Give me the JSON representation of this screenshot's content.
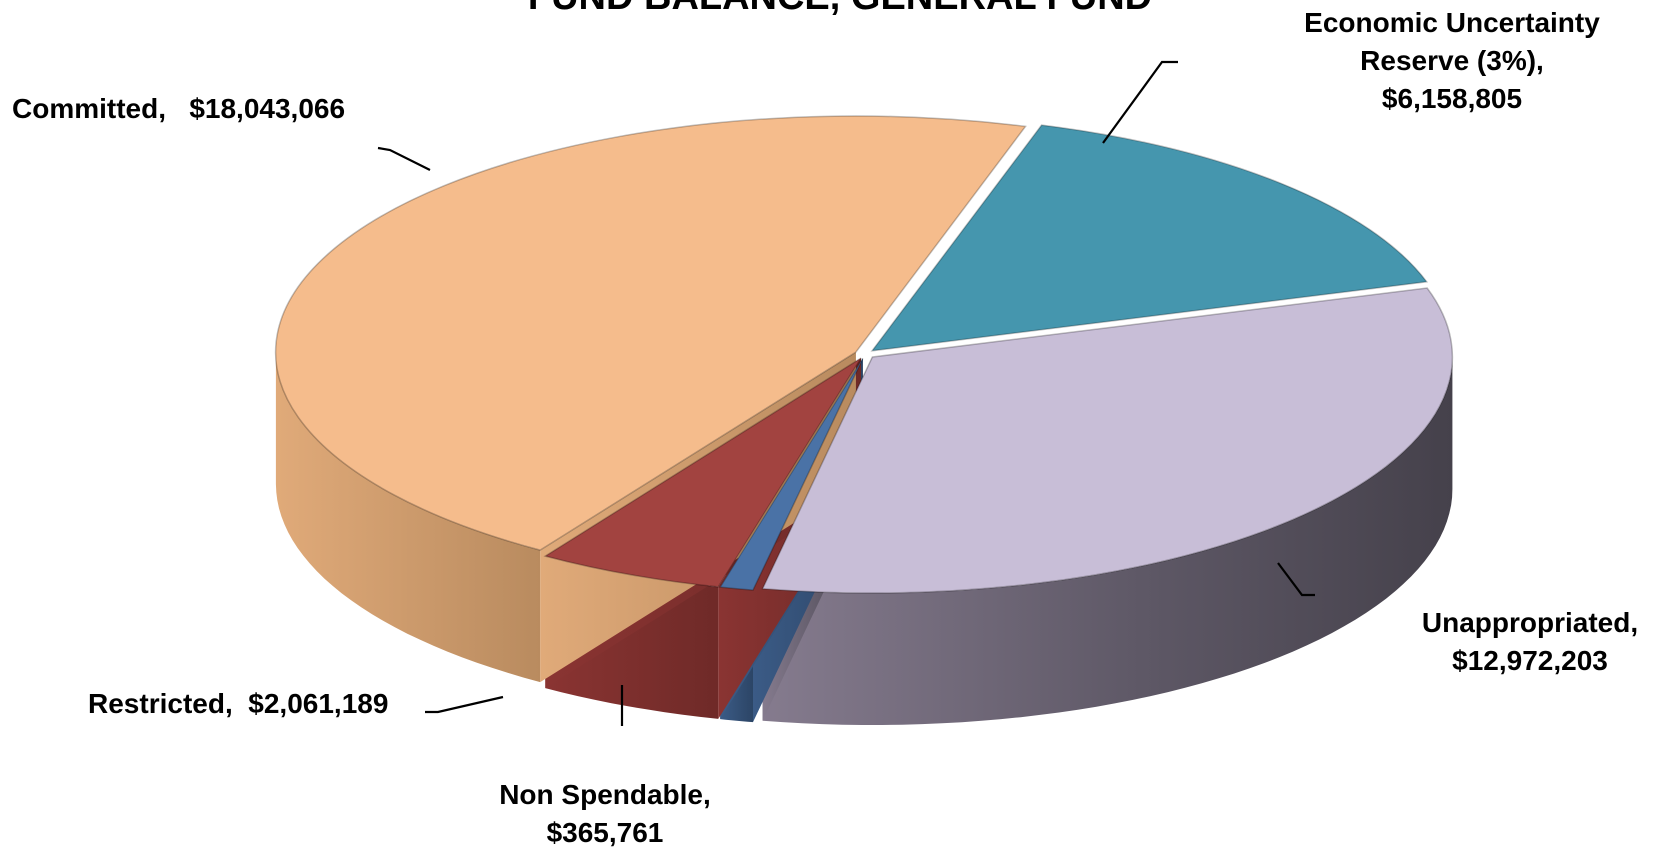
{
  "chart_data": {
    "type": "pie",
    "title": "FUND BALANCE, GENERAL FUND",
    "slices": [
      {
        "label": "Economic Uncertainty Reserve (3%)",
        "value": 6158805,
        "value_text": "$6,158,805",
        "color": "#4596AE"
      },
      {
        "label": "Unappropriated",
        "value": 12972203,
        "value_text": "$12,972,203",
        "color": "#C8BED7"
      },
      {
        "label": "Non Spendable",
        "value": 365761,
        "value_text": "$365,761",
        "color": "#4A72A6"
      },
      {
        "label": "Restricted",
        "value": 2061189,
        "value_text": "$2,061,189",
        "color": "#A24340"
      },
      {
        "label": "Committed",
        "value": 18043066,
        "value_text": "$18,043,066",
        "color": "#F5BC8C"
      }
    ],
    "style": "3d-exploded"
  },
  "labels": {
    "econ_line1": "Economic Uncertainty",
    "econ_line2": "Reserve (3%),",
    "econ_value": "$6,158,805",
    "unapp_line1": "Unappropriated,",
    "unapp_value": "$12,972,203",
    "nonspend_line1": "Non Spendable,",
    "nonspend_value": "$365,761",
    "restricted_name": "Restricted,",
    "restricted_value": "$2,061,189",
    "committed_name": "Committed,",
    "committed_value": "$18,043,066"
  }
}
